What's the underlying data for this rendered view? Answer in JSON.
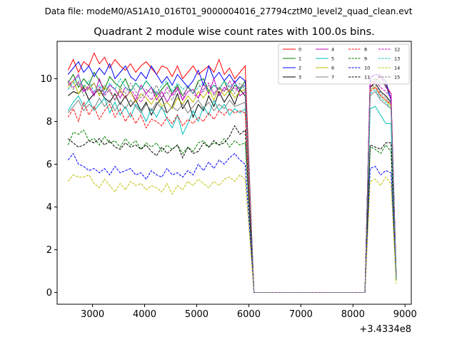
{
  "chart_data": {
    "type": "line",
    "suptitle": "Data file: modeM0/AS1A10_016T01_9000004016_27794cztM0_level2_quad_clean.evt",
    "title": "Quadrant 2 module wise count rates with 100.0s bins.",
    "xlabel": "",
    "ylabel": "",
    "x_offset_label": "+3.4334e8",
    "xlim": [
      2320,
      9120
    ],
    "ylim": [
      -0.55,
      11.75
    ],
    "x_ticks": [
      3000,
      4000,
      5000,
      6000,
      7000,
      8000,
      9000
    ],
    "x_tick_labels": [
      "3000",
      "4000",
      "5000",
      "6000",
      "7000",
      "8000",
      "9000"
    ],
    "y_ticks": [
      0,
      2,
      4,
      6,
      8,
      10
    ],
    "y_tick_labels": [
      "0",
      "2",
      "4",
      "6",
      "8",
      "10"
    ],
    "x_start": 2530,
    "x_step": 100,
    "num_points": 35,
    "gap_range": [
      6130,
      8230
    ],
    "legend_position": "top-right",
    "series": [
      {
        "name": "0",
        "color": "#ff0000",
        "dash": "solid",
        "values": [
          10.4,
          10.9,
          10.3,
          10.8,
          10.6,
          11.2,
          10.7,
          11.0,
          10.5,
          10.9,
          10.6,
          10.4,
          10.7,
          10.3,
          10.6,
          10.8,
          10.5,
          10.2,
          10.6,
          10.5,
          10.1,
          10.6,
          10.0,
          10.3,
          10.6,
          10.2,
          10.4,
          10.6,
          10.3,
          10.9,
          10.2,
          10.5,
          10.0,
          10.3,
          10.6
        ],
        "tail": [
          9.6,
          9.9,
          10.1,
          9.7,
          9.3,
          0.9
        ]
      },
      {
        "name": "1",
        "color": "#008000",
        "dash": "solid",
        "values": [
          9.8,
          10.2,
          9.6,
          10.0,
          9.7,
          10.3,
          9.9,
          9.5,
          10.1,
          9.8,
          9.6,
          10.0,
          9.4,
          9.8,
          9.5,
          9.9,
          9.6,
          9.2,
          9.5,
          9.8,
          9.3,
          9.7,
          9.2,
          9.6,
          9.3,
          9.9,
          10.0,
          9.4,
          9.7,
          9.5,
          9.9,
          9.3,
          9.7,
          9.5,
          9.9
        ],
        "tail": [
          9.9,
          10.0,
          9.8,
          9.7,
          9.0,
          0.7
        ]
      },
      {
        "name": "2",
        "color": "#0000ff",
        "dash": "solid",
        "values": [
          10.2,
          10.5,
          10.8,
          10.3,
          10.6,
          10.1,
          10.5,
          10.2,
          10.7,
          10.0,
          10.3,
          10.6,
          10.1,
          9.9,
          10.3,
          10.0,
          10.6,
          10.2,
          9.8,
          10.1,
          9.7,
          10.2,
          9.9,
          9.6,
          9.9,
          10.4,
          9.7,
          10.6,
          10.0,
          10.3,
          9.9,
          10.2,
          9.8,
          10.1,
          9.9
        ],
        "tail": [
          10.0,
          10.2,
          10.1,
          9.9,
          9.0,
          0.8
        ]
      },
      {
        "name": "3",
        "color": "#000000",
        "dash": "solid",
        "values": [
          9.2,
          9.4,
          9.3,
          9.6,
          9.0,
          9.3,
          9.5,
          9.1,
          8.9,
          9.3,
          8.8,
          9.2,
          8.7,
          9.0,
          8.5,
          8.9,
          8.3,
          8.8,
          9.1,
          8.4,
          8.7,
          9.3,
          8.6,
          9.0,
          8.2,
          8.8,
          8.5,
          9.2,
          8.7,
          9.4,
          8.9,
          9.3,
          8.8,
          9.5,
          9.2
        ],
        "tail": [
          9.6,
          9.8,
          9.4,
          9.2,
          8.9,
          0.8
        ]
      },
      {
        "name": "4",
        "color": "#bf00bf",
        "dash": "solid",
        "values": [
          9.7,
          9.9,
          10.2,
          9.4,
          9.6,
          9.2,
          10.0,
          9.3,
          9.7,
          9.5,
          9.1,
          9.6,
          9.4,
          9.0,
          9.7,
          9.3,
          9.6,
          9.0,
          9.4,
          8.9,
          9.3,
          9.6,
          9.0,
          9.4,
          9.5,
          9.1,
          9.8,
          9.3,
          10.0,
          9.2,
          9.6,
          9.4,
          9.9,
          9.2,
          9.4
        ],
        "tail": [
          10.1,
          10.2,
          10.2,
          9.6,
          9.3,
          0.8
        ]
      },
      {
        "name": "5",
        "color": "#00bfbf",
        "dash": "solid",
        "values": [
          8.5,
          8.9,
          9.2,
          8.7,
          9.0,
          8.5,
          8.8,
          9.1,
          8.4,
          8.9,
          8.3,
          8.7,
          8.2,
          8.8,
          8.5,
          8.0,
          8.6,
          8.2,
          8.7,
          8.1,
          7.7,
          8.3,
          7.4,
          7.9,
          8.5,
          8.0,
          8.7,
          8.3,
          9.0,
          8.5,
          8.8,
          8.3,
          8.6,
          8.4,
          8.6
        ],
        "tail": [
          8.6,
          8.7,
          8.3,
          7.9,
          7.9,
          0.6
        ]
      },
      {
        "name": "6",
        "color": "#bfbf00",
        "dash": "solid",
        "values": [
          9.6,
          9.9,
          9.3,
          9.7,
          9.5,
          9.8,
          9.2,
          9.6,
          9.4,
          9.0,
          9.5,
          9.1,
          9.4,
          8.9,
          9.3,
          9.1,
          8.8,
          9.2,
          8.7,
          8.9,
          8.6,
          9.1,
          8.8,
          9.2,
          8.9,
          9.4,
          9.1,
          9.5,
          9.0,
          9.6,
          9.2,
          9.5,
          9.1,
          9.4,
          9.5
        ],
        "tail": [
          9.5,
          9.6,
          9.2,
          9.0,
          8.7,
          0.7
        ]
      },
      {
        "name": "7",
        "color": "#808080",
        "dash": "solid",
        "values": [
          8.4,
          8.7,
          9.0,
          8.5,
          8.8,
          8.6,
          9.1,
          8.7,
          9.0,
          8.5,
          8.9,
          8.6,
          9.0,
          8.7,
          8.4,
          8.8,
          8.5,
          8.9,
          8.6,
          8.4,
          8.7,
          8.5,
          8.8,
          8.4,
          8.7,
          9.0,
          8.6,
          8.9,
          8.5,
          8.8,
          8.6,
          9.0,
          8.7,
          8.8,
          8.9
        ],
        "tail": [
          9.2,
          9.4,
          9.0,
          8.8,
          8.6,
          0.8
        ]
      },
      {
        "name": "8",
        "color": "#ff0000",
        "dash": "dashed",
        "values": [
          8.2,
          8.6,
          8.0,
          8.9,
          8.3,
          8.7,
          8.1,
          8.5,
          8.8,
          8.2,
          8.6,
          8.0,
          8.4,
          7.9,
          8.3,
          7.7,
          8.1,
          8.0,
          7.8,
          8.2,
          7.9,
          8.3,
          7.8,
          8.1,
          7.9,
          8.2,
          8.0,
          8.4,
          8.1,
          8.5,
          8.3,
          8.6,
          8.4,
          8.5,
          8.4
        ],
        "tail": [
          9.4,
          9.6,
          9.2,
          9.0,
          8.8,
          0.7
        ]
      },
      {
        "name": "9",
        "color": "#008000",
        "dash": "dashed",
        "values": [
          6.9,
          7.5,
          7.4,
          7.6,
          7.1,
          7.2,
          6.9,
          7.3,
          7.0,
          7.1,
          6.8,
          7.2,
          6.9,
          7.1,
          6.7,
          7.0,
          6.8,
          7.0,
          6.6,
          6.9,
          6.7,
          6.9,
          6.5,
          6.8,
          6.6,
          7.0,
          7.1,
          6.8,
          7.0,
          6.9,
          7.2,
          6.8,
          7.1,
          6.9,
          7.0
        ],
        "tail": [
          6.8,
          6.7,
          6.5,
          6.9,
          6.6,
          0.6
        ]
      },
      {
        "name": "10",
        "color": "#0000ff",
        "dash": "dashed",
        "values": [
          6.2,
          6.5,
          6.0,
          5.9,
          5.7,
          5.8,
          5.6,
          5.8,
          5.5,
          5.9,
          5.6,
          5.7,
          5.8,
          5.5,
          5.6,
          5.3,
          5.7,
          5.5,
          5.4,
          5.8,
          5.5,
          5.6,
          5.4,
          5.7,
          5.5,
          6.0,
          5.7,
          6.1,
          5.8,
          6.2,
          6.0,
          6.3,
          6.5,
          6.2,
          6.0
        ],
        "tail": [
          5.8,
          5.9,
          5.5,
          5.7,
          5.6,
          0.7
        ]
      },
      {
        "name": "11",
        "color": "#000000",
        "dash": "dashed",
        "values": [
          7.2,
          7.0,
          6.8,
          6.9,
          7.1,
          7.0,
          7.2,
          6.9,
          7.1,
          6.8,
          6.7,
          7.0,
          6.8,
          6.9,
          6.7,
          6.9,
          6.6,
          6.4,
          6.8,
          6.5,
          6.7,
          6.9,
          6.3,
          6.8,
          6.5,
          6.6,
          7.0,
          6.8,
          7.1,
          6.9,
          7.0,
          7.3,
          7.8,
          7.4,
          7.6
        ],
        "tail": [
          6.9,
          6.8,
          6.7,
          7.0,
          7.0,
          0.6
        ]
      },
      {
        "name": "12",
        "color": "#bf00bf",
        "dash": "dashed",
        "values": [
          9.9,
          9.6,
          9.8,
          9.4,
          9.7,
          9.3,
          9.6,
          9.2,
          9.5,
          9.0,
          9.4,
          9.1,
          9.5,
          9.2,
          8.9,
          9.3,
          9.0,
          9.4,
          9.1,
          9.6,
          9.2,
          9.5,
          9.0,
          9.7,
          9.3,
          9.1,
          9.5,
          9.8,
          9.3,
          9.6,
          9.4,
          9.9,
          9.5,
          9.6,
          9.7
        ],
        "tail": [
          9.8,
          9.9,
          9.6,
          9.4,
          9.1,
          0.8
        ]
      },
      {
        "name": "13",
        "color": "#00bfbf",
        "dash": "dashed",
        "values": [
          9.5,
          9.8,
          10.1,
          9.6,
          9.9,
          9.4,
          9.7,
          9.3,
          9.8,
          9.5,
          10.0,
          9.6,
          9.4,
          9.8,
          9.5,
          9.9,
          9.6,
          9.3,
          9.7,
          9.9,
          9.4,
          9.8,
          9.5,
          9.7,
          9.3,
          9.6,
          9.8,
          9.4,
          9.7,
          9.5,
          9.9,
          9.6,
          9.8,
          9.5,
          9.7
        ],
        "tail": [
          9.3,
          9.5,
          9.1,
          8.9,
          8.6,
          0.7
        ]
      },
      {
        "name": "14",
        "color": "#bfbf00",
        "dash": "dashed",
        "values": [
          5.2,
          5.5,
          5.4,
          5.4,
          5.5,
          5.1,
          4.9,
          5.3,
          5.0,
          4.7,
          5.1,
          4.8,
          5.2,
          5.0,
          5.1,
          4.8,
          5.0,
          4.9,
          4.7,
          5.1,
          4.6,
          5.0,
          4.8,
          5.2,
          5.0,
          5.3,
          5.1,
          4.9,
          5.2,
          5.0,
          5.3,
          5.4,
          5.2,
          5.5,
          5.3
        ],
        "tail": [
          5.2,
          5.3,
          5.0,
          5.4,
          5.1,
          0.4
        ]
      },
      {
        "name": "15",
        "color": "#808080",
        "dash": "dashed",
        "values": [
          9.8,
          9.5,
          9.9,
          9.2,
          9.6,
          9.8,
          9.3,
          9.7,
          9.4,
          9.0,
          9.6,
          9.3,
          9.8,
          9.4,
          9.1,
          9.5,
          9.3,
          9.7,
          9.1,
          9.4,
          9.0,
          9.5,
          9.2,
          9.6,
          9.3,
          9.8,
          9.4,
          9.7,
          9.2,
          9.6,
          9.4,
          9.7,
          9.3,
          9.8,
          9.5
        ],
        "tail": [
          9.5,
          9.7,
          9.3,
          9.1,
          8.8,
          0.7
        ]
      }
    ]
  }
}
